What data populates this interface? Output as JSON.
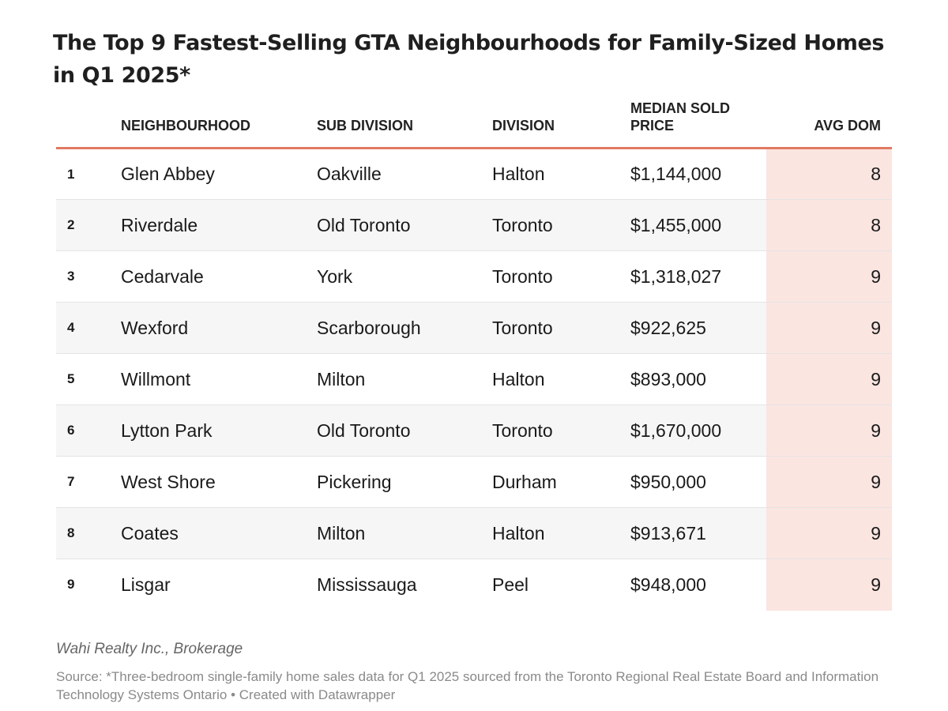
{
  "chart_data": {
    "type": "table",
    "title": "The Top 9 Fastest-Selling GTA Neighbourhoods for Family-Sized Homes in Q1 2025*",
    "columns": [
      "",
      "NEIGHBOURHOOD",
      "SUB DIVISION",
      "DIVISION",
      "MEDIAN SOLD PRICE",
      "AVG DOM"
    ],
    "rows": [
      {
        "rank": "1",
        "neighbourhood": "Glen Abbey",
        "sub_division": "Oakville",
        "division": "Halton",
        "median_sold_price": "$1,144,000",
        "avg_dom": "8"
      },
      {
        "rank": "2",
        "neighbourhood": "Riverdale",
        "sub_division": "Old Toronto",
        "division": "Toronto",
        "median_sold_price": "$1,455,000",
        "avg_dom": "8"
      },
      {
        "rank": "3",
        "neighbourhood": "Cedarvale",
        "sub_division": "York",
        "division": "Toronto",
        "median_sold_price": "$1,318,027",
        "avg_dom": "9"
      },
      {
        "rank": "4",
        "neighbourhood": "Wexford",
        "sub_division": "Scarborough",
        "division": "Toronto",
        "median_sold_price": "$922,625",
        "avg_dom": "9"
      },
      {
        "rank": "5",
        "neighbourhood": "Willmont",
        "sub_division": "Milton",
        "division": "Halton",
        "median_sold_price": "$893,000",
        "avg_dom": "9"
      },
      {
        "rank": "6",
        "neighbourhood": "Lytton Park",
        "sub_division": "Old Toronto",
        "division": "Toronto",
        "median_sold_price": "$1,670,000",
        "avg_dom": "9"
      },
      {
        "rank": "7",
        "neighbourhood": "West Shore",
        "sub_division": "Pickering",
        "division": "Durham",
        "median_sold_price": "$950,000",
        "avg_dom": "9"
      },
      {
        "rank": "8",
        "neighbourhood": "Coates",
        "sub_division": "Milton",
        "division": "Halton",
        "median_sold_price": "$913,671",
        "avg_dom": "9"
      },
      {
        "rank": "9",
        "neighbourhood": "Lisgar",
        "sub_division": "Mississauga",
        "division": "Peel",
        "median_sold_price": "$948,000",
        "avg_dom": "9"
      }
    ],
    "credit": "Wahi Realty Inc., Brokerage",
    "source": "Source: *Three-bedroom single-family home sales data for Q1 2025 sourced from the Toronto Regional Real Estate Board and Information Technology Systems Ontario • Created with Datawrapper"
  },
  "colors": {
    "header_rule": "#e07a61",
    "dom_highlight": "#fbe5e1",
    "alt_row": "#f6f6f6"
  }
}
